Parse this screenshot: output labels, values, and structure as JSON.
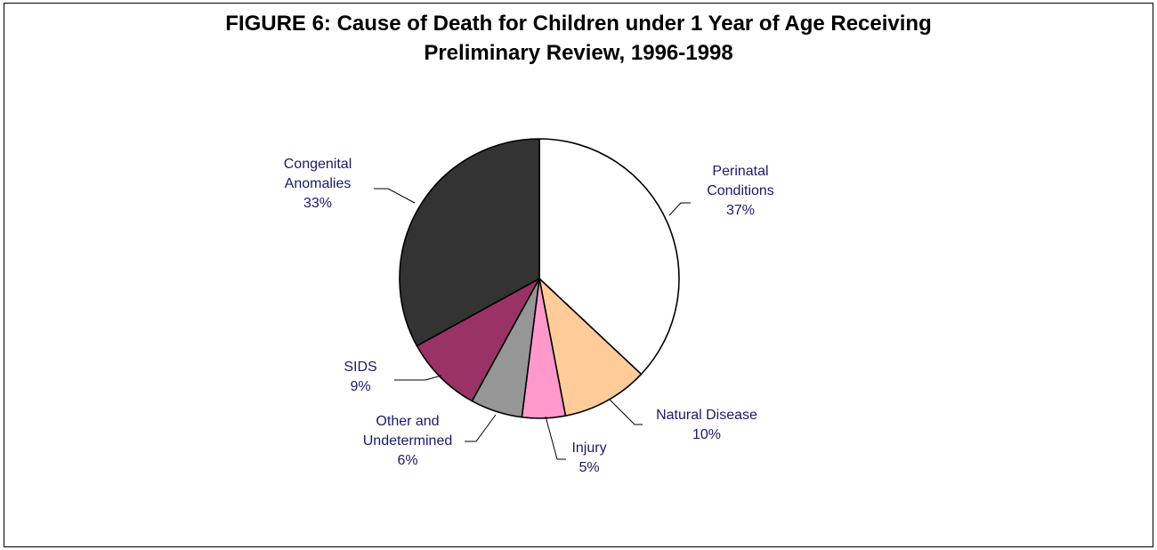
{
  "chart_data": {
    "type": "pie",
    "title": "FIGURE 6: Cause of Death for Children under 1 Year of Age Receiving Preliminary Review, 1996-1998",
    "title_lines": [
      "FIGURE 6: Cause of Death for Children under 1 Year of Age Receiving",
      "Preliminary Review, 1996-1998"
    ],
    "start": "12 o'clock",
    "direction": "clockwise",
    "label_color": "#1a1a6e",
    "slices": [
      {
        "name": "Perinatal Conditions",
        "label_lines": [
          "Perinatal",
          "Conditions"
        ],
        "value": 37,
        "value_text": "37%",
        "color": "#ffffff"
      },
      {
        "name": "Natural Disease",
        "label_lines": [
          "Natural Disease"
        ],
        "value": 10,
        "value_text": "10%",
        "color": "#ffcc99"
      },
      {
        "name": "Injury",
        "label_lines": [
          "Injury"
        ],
        "value": 5,
        "value_text": "5%",
        "color": "#ff99cc"
      },
      {
        "name": "Other and Undetermined",
        "label_lines": [
          "Other and",
          "Undetermined"
        ],
        "value": 6,
        "value_text": "6%",
        "color": "#969696"
      },
      {
        "name": "SIDS",
        "label_lines": [
          "SIDS"
        ],
        "value": 9,
        "value_text": "9%",
        "color": "#993366"
      },
      {
        "name": "Congenital Anomalies",
        "label_lines": [
          "Congenital",
          "Anomalies"
        ],
        "value": 33,
        "value_text": "33%",
        "color": "#333333"
      }
    ]
  }
}
